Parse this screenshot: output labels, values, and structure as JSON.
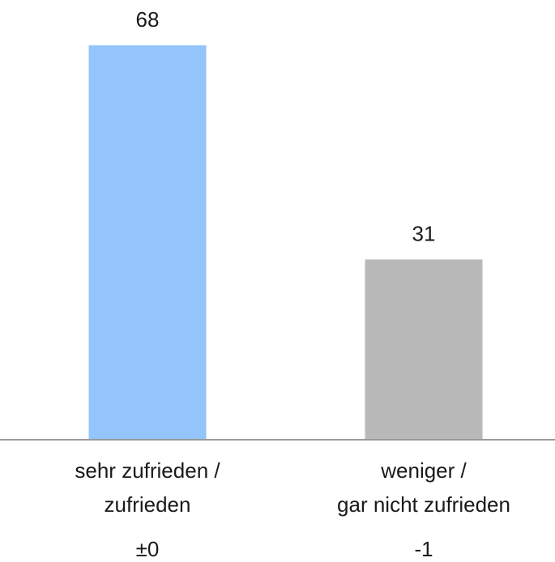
{
  "chart_data": {
    "type": "bar",
    "categories": [
      [
        "sehr zufrieden /",
        "zufrieden"
      ],
      [
        "weniger /",
        "gar nicht zufrieden"
      ]
    ],
    "values": [
      68,
      31
    ],
    "colors": [
      "#94c4fc",
      "#b9b9b9"
    ],
    "changes": [
      "±0",
      "-1"
    ]
  }
}
